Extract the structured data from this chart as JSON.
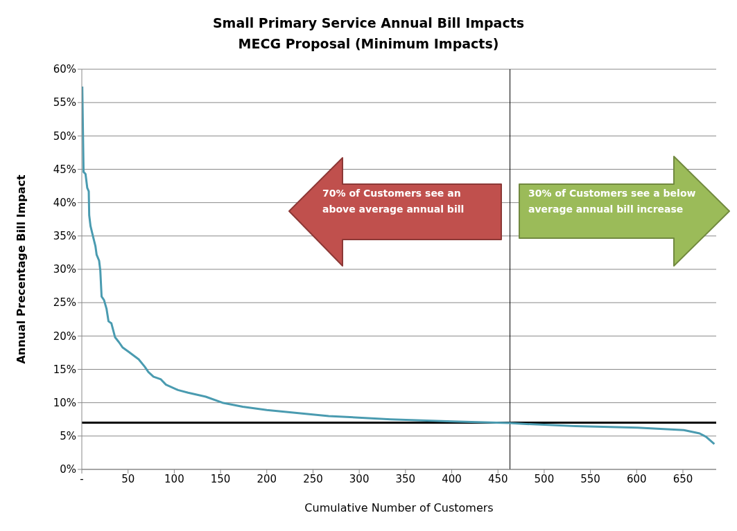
{
  "chart_data": {
    "type": "line",
    "title": "Small Primary Service Annual Bill Impacts\nMECG Proposal (Minimum  Impacts)",
    "xlabel": "Cumulative Number of Customers",
    "ylabel": "Annual Precentage Bill Impact",
    "xlim": [
      0,
      686
    ],
    "xticks": [
      {
        "value": 0,
        "label": "-"
      },
      50,
      100,
      150,
      200,
      250,
      300,
      350,
      400,
      450,
      500,
      550,
      600,
      650
    ],
    "ylim": [
      0,
      60
    ],
    "yticks": [
      {
        "value": 0,
        "label": "0%"
      },
      {
        "value": 5,
        "label": "5%"
      },
      {
        "value": 10,
        "label": "10%"
      },
      {
        "value": 15,
        "label": "15%"
      },
      {
        "value": 20,
        "label": "20%"
      },
      {
        "value": 25,
        "label": "25%"
      },
      {
        "value": 30,
        "label": "30%"
      },
      {
        "value": 35,
        "label": "35%"
      },
      {
        "value": 40,
        "label": "40%"
      },
      {
        "value": 45,
        "label": "45%"
      },
      {
        "value": 50,
        "label": "50%"
      },
      {
        "value": 55,
        "label": "55%"
      },
      {
        "value": 60,
        "label": "60%"
      }
    ],
    "grid": "y",
    "marker": "none",
    "line_style": "solid",
    "series": [
      {
        "color": "#4a9bb0",
        "x": [
          0.5,
          1.9,
          4,
          5.9,
          7.5,
          8,
          9.4,
          12,
          14.7,
          16,
          18.7,
          20,
          21.4,
          24,
          26.7,
          28.9,
          32,
          36,
          40,
          44,
          51,
          61.5,
          68,
          72,
          77.5,
          85.5,
          91,
          104,
          115,
          134,
          152,
          174,
          200,
          267,
          334,
          401,
          462,
          481,
          534,
          601,
          651,
          668,
          675,
          684
        ],
        "values": [
          57.4,
          44.6,
          44.3,
          42.2,
          41.7,
          38.1,
          36.5,
          35,
          33.5,
          32.2,
          31.3,
          29.8,
          25.9,
          25.4,
          24.1,
          22.2,
          21.9,
          19.8,
          19.1,
          18.3,
          17.6,
          16.5,
          15.4,
          14.6,
          13.9,
          13.5,
          12.7,
          11.9,
          11.5,
          10.9,
          10,
          9.4,
          8.9,
          8,
          7.5,
          7.2,
          6.96,
          6.8,
          6.5,
          6.26,
          5.9,
          5.4,
          4.9,
          3.8
        ]
      }
    ],
    "ref_lines": [
      {
        "axis": "y",
        "value": 7,
        "color": "#000000"
      },
      {
        "axis": "x",
        "value": 463,
        "color": "#000000"
      }
    ],
    "annotations": [
      "70% of Customers see an above average annual bill",
      "30% of Customers see a below average annual bill increase"
    ]
  }
}
